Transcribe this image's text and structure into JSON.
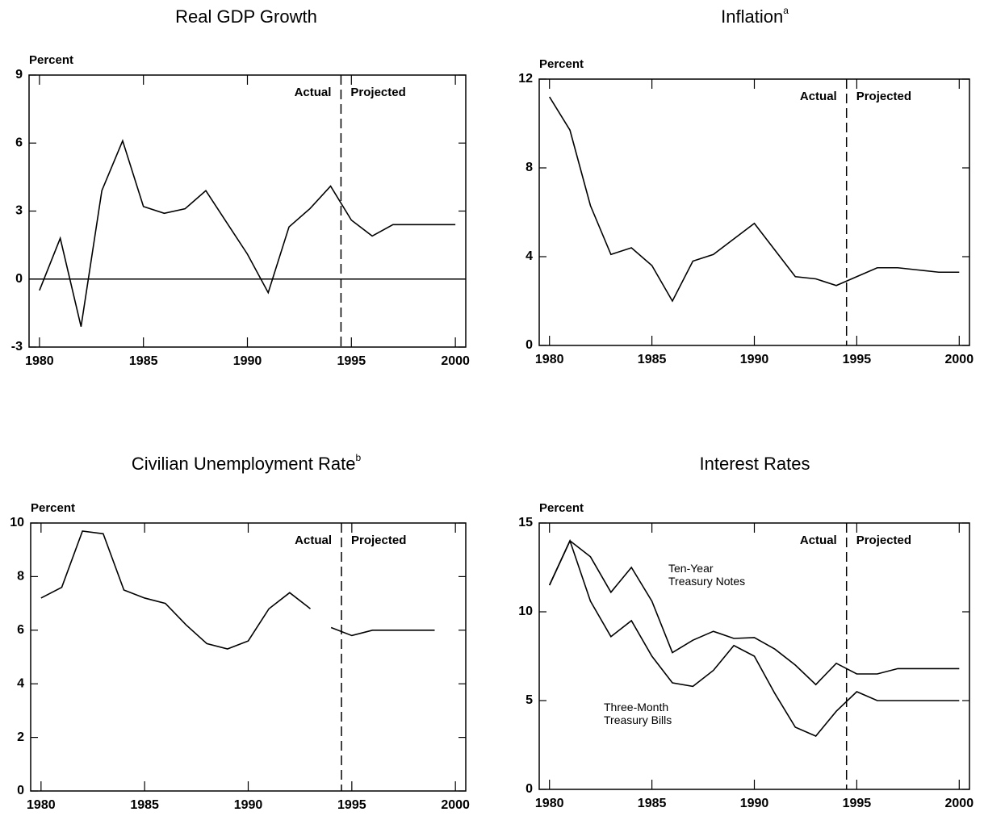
{
  "chart_data": [
    {
      "type": "line",
      "title": "Real GDP Growth",
      "ylabel": "Percent",
      "x": [
        1980,
        1981,
        1982,
        1983,
        1984,
        1985,
        1986,
        1987,
        1988,
        1989,
        1990,
        1991,
        1992,
        1993,
        1994,
        1995,
        1996,
        1997,
        1998,
        1999,
        2000
      ],
      "series": [
        {
          "color": "#000",
          "values": [
            -0.5,
            1.8,
            -2.1,
            3.9,
            6.1,
            3.2,
            2.9,
            3.1,
            3.9,
            2.5,
            1.1,
            -0.6,
            2.3,
            3.1,
            4.1,
            2.6,
            1.9,
            2.4,
            2.4,
            2.4,
            2.4
          ]
        }
      ],
      "xlim": [
        1979.5,
        2000.5
      ],
      "xticks": [
        1980,
        1985,
        1990,
        1995,
        2000
      ],
      "ylim": [
        -3,
        9
      ],
      "yticks": [
        -3,
        0,
        3,
        6,
        9
      ],
      "zero_line": true,
      "projection_start": 1994.5,
      "annotations": [
        "Actual",
        "Projected"
      ]
    },
    {
      "type": "line",
      "title": "Inflation",
      "title_superscript": "a",
      "ylabel": "Percent",
      "x": [
        1980,
        1981,
        1982,
        1983,
        1984,
        1985,
        1986,
        1987,
        1988,
        1989,
        1990,
        1991,
        1992,
        1993,
        1994,
        1995,
        1996,
        1997,
        1998,
        1999,
        2000
      ],
      "series": [
        {
          "color": "#000",
          "values": [
            11.2,
            9.7,
            6.3,
            4.1,
            4.4,
            3.6,
            2.0,
            3.8,
            4.1,
            4.8,
            5.5,
            4.3,
            3.1,
            3.0,
            2.7,
            3.1,
            3.5,
            3.5,
            3.4,
            3.3,
            3.3
          ]
        }
      ],
      "xlim": [
        1979.5,
        2000.5
      ],
      "xticks": [
        1980,
        1985,
        1990,
        1995,
        2000
      ],
      "ylim": [
        0,
        12
      ],
      "yticks": [
        0,
        4,
        8,
        12
      ],
      "projection_start": 1994.5,
      "annotations": [
        "Actual",
        "Projected"
      ]
    },
    {
      "type": "line",
      "title": "Civilian Unemployment Rate",
      "title_superscript": "b",
      "ylabel": "Percent",
      "series": [
        {
          "color": "#000",
          "x": [
            1980,
            1981,
            1982,
            1983,
            1984,
            1985,
            1986,
            1987,
            1988,
            1989,
            1990,
            1991,
            1992,
            1993
          ],
          "values": [
            7.2,
            7.6,
            9.7,
            9.6,
            7.5,
            7.2,
            7.0,
            6.2,
            5.5,
            5.3,
            5.6,
            6.8,
            7.4,
            6.8
          ]
        },
        {
          "color": "#000",
          "x": [
            1994,
            1995,
            1996,
            1997,
            1998,
            1999
          ],
          "values": [
            6.1,
            5.8,
            6.0,
            6.0,
            6.0,
            6.0
          ]
        }
      ],
      "xlim": [
        1979.5,
        2000.5
      ],
      "xticks": [
        1980,
        1985,
        1990,
        1995,
        2000
      ],
      "ylim": [
        0,
        10
      ],
      "yticks": [
        0,
        2,
        4,
        6,
        8,
        10
      ],
      "projection_start": 1994.5,
      "annotations": [
        "Actual",
        "Projected"
      ]
    },
    {
      "type": "line",
      "title": "Interest Rates",
      "ylabel": "Percent",
      "x": [
        1980,
        1981,
        1982,
        1983,
        1984,
        1985,
        1986,
        1987,
        1988,
        1989,
        1990,
        1991,
        1992,
        1993,
        1994,
        1995,
        1996,
        1997,
        1998,
        1999,
        2000
      ],
      "series": [
        {
          "name": "Ten-Year Treasury Notes",
          "color": "#000",
          "values": [
            11.5,
            14.0,
            13.1,
            11.1,
            12.5,
            10.6,
            7.7,
            8.4,
            8.9,
            8.5,
            8.55,
            7.9,
            7.0,
            5.9,
            7.1,
            6.5,
            6.5,
            6.8,
            6.8,
            6.8,
            6.8
          ]
        },
        {
          "name": "Three-Month Treasury Bills",
          "color": "#000",
          "values": [
            11.5,
            14.0,
            10.6,
            8.6,
            9.5,
            7.5,
            6.0,
            5.8,
            6.7,
            8.1,
            7.5,
            5.4,
            3.5,
            3.0,
            4.4,
            5.5,
            5.0,
            5.0,
            5.0,
            5.0,
            5.0
          ]
        }
      ],
      "xlim": [
        1979.5,
        2000.5
      ],
      "xticks": [
        1980,
        1985,
        1990,
        1995,
        2000
      ],
      "ylim": [
        0,
        15
      ],
      "yticks": [
        0,
        5,
        10,
        15
      ],
      "projection_start": 1994.5,
      "annotations": [
        "Actual",
        "Projected"
      ]
    }
  ]
}
